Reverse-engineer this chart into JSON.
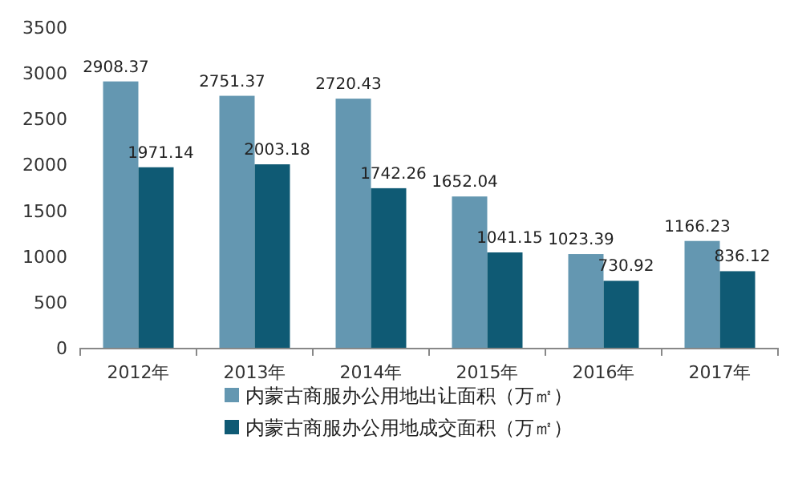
{
  "chart_data": {
    "type": "bar",
    "categories": [
      "2012年",
      "2013年",
      "2014年",
      "2015年",
      "2016年",
      "2017年"
    ],
    "series": [
      {
        "name": "内蒙古商服办公用地出让面积（万㎡）",
        "color": "#6497b1",
        "values": [
          2908.37,
          2751.37,
          2720.43,
          1652.04,
          1023.39,
          1166.23
        ]
      },
      {
        "name": "内蒙古商服办公用地成交面积（万㎡）",
        "color": "#0f5a74",
        "values": [
          1971.14,
          2003.18,
          1742.26,
          1041.15,
          730.92,
          836.12
        ]
      }
    ],
    "ylim": [
      0,
      3500
    ],
    "yticks": [
      0,
      500,
      1000,
      1500,
      2000,
      2500,
      3000,
      3500
    ],
    "data_labels": true,
    "legend": "bottom",
    "grid": false
  }
}
